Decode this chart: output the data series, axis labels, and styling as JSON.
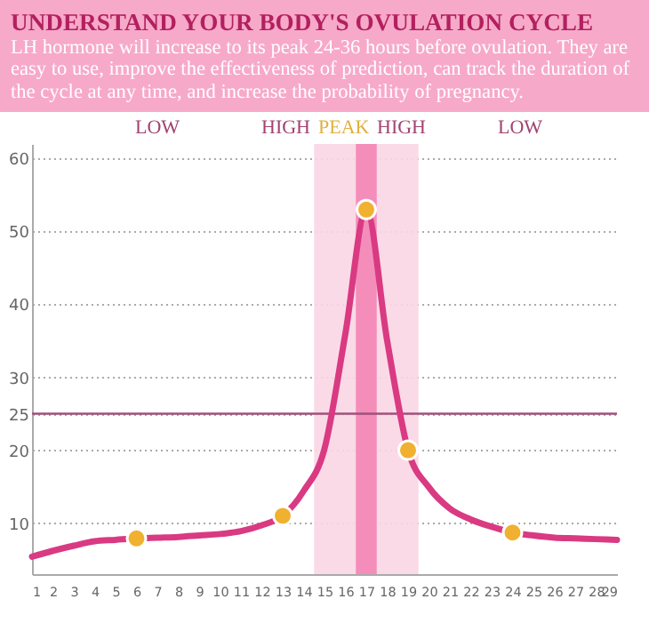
{
  "chart_data": {
    "type": "line",
    "title": "UNDERSTAND YOUR BODY'S OVULATION CYCLE",
    "subtitle": "LH hormone will increase to its peak 24-36 hours before ovulation. They are easy to use, improve the effectiveness of prediction, can track the duration of the cycle at any time, and increase the probability of pregnancy.",
    "x": [
      1,
      2,
      3,
      4,
      5,
      6,
      7,
      8,
      9,
      10,
      11,
      12,
      13,
      14,
      15,
      16,
      17,
      18,
      19,
      20,
      21,
      22,
      23,
      24,
      25,
      26,
      27,
      28,
      29
    ],
    "series": [
      {
        "type": "line",
        "color": "#d93a82",
        "values": [
          5.4,
          6.2,
          6.9,
          7.5,
          7.7,
          7.9,
          8.0,
          8.1,
          8.3,
          8.5,
          8.9,
          9.7,
          11.0,
          14.4,
          20.2,
          36,
          53,
          35,
          20,
          14.9,
          12.0,
          10.5,
          9.5,
          8.7,
          8.3,
          8.0,
          7.9,
          7.8,
          7.7
        ]
      },
      {
        "type": "scatter",
        "marker": "circle",
        "color": "#f0b030",
        "values": [
          null,
          null,
          null,
          null,
          null,
          7.9,
          null,
          null,
          null,
          null,
          null,
          null,
          11.0,
          null,
          null,
          null,
          53,
          null,
          20,
          null,
          null,
          null,
          null,
          8.7,
          null,
          null,
          null,
          null,
          null
        ]
      }
    ],
    "xlim": [
      1,
      29
    ],
    "xticks": [
      1,
      2,
      3,
      4,
      5,
      6,
      7,
      8,
      9,
      10,
      11,
      12,
      13,
      14,
      15,
      16,
      17,
      18,
      19,
      20,
      21,
      22,
      23,
      24,
      25,
      26,
      27,
      28,
      29
    ],
    "ylim": [
      3,
      62
    ],
    "yticks": [
      10,
      20,
      25,
      30,
      40,
      50,
      60
    ],
    "grid": "y",
    "ref_lines": [
      {
        "axis": "y",
        "value": 25,
        "color": "#a0507a"
      }
    ],
    "bands": [
      {
        "axis": "x",
        "from": 14.5,
        "to": 19.5,
        "color": "#fbd6e6"
      },
      {
        "axis": "x",
        "from": 16.5,
        "to": 17.5,
        "color": "#f384b5"
      }
    ],
    "annotations": [
      "LOW",
      "HIGH",
      "PEAK",
      "HIGH",
      "LOW"
    ]
  }
}
